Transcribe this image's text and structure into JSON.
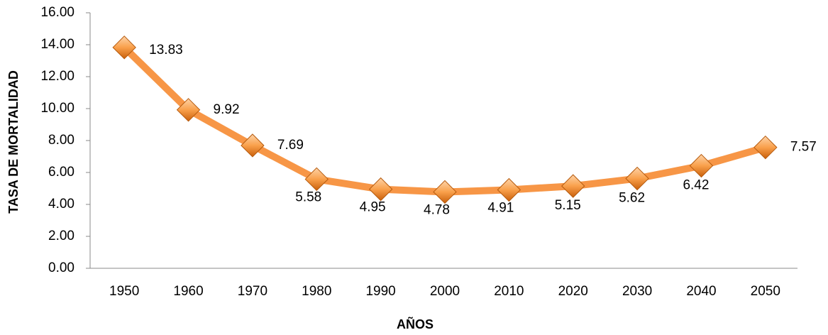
{
  "chart_data": {
    "type": "line",
    "xlabel": "AÑOS",
    "ylabel": "TASA DE MORTALIDAD",
    "categories": [
      "1950",
      "1960",
      "1970",
      "1980",
      "1990",
      "2000",
      "2010",
      "2020",
      "2030",
      "2040",
      "2050"
    ],
    "series": [
      {
        "name": "Tasa de mortalidad",
        "color": "#f79646",
        "values": [
          13.83,
          9.92,
          7.69,
          5.58,
          4.95,
          4.78,
          4.91,
          5.15,
          5.62,
          6.42,
          7.57
        ]
      }
    ],
    "ylim": [
      0,
      16
    ],
    "yticks": [
      {
        "value": 0,
        "label": "0.00"
      },
      {
        "value": 2,
        "label": "2.00"
      },
      {
        "value": 4,
        "label": "4.00"
      },
      {
        "value": 6,
        "label": "6.00"
      },
      {
        "value": 8,
        "label": "8.00"
      },
      {
        "value": 10,
        "label": "10.00"
      },
      {
        "value": 12,
        "label": "12.00"
      },
      {
        "value": 14,
        "label": "14.00"
      },
      {
        "value": 16,
        "label": "16.00"
      }
    ],
    "grid": false
  }
}
